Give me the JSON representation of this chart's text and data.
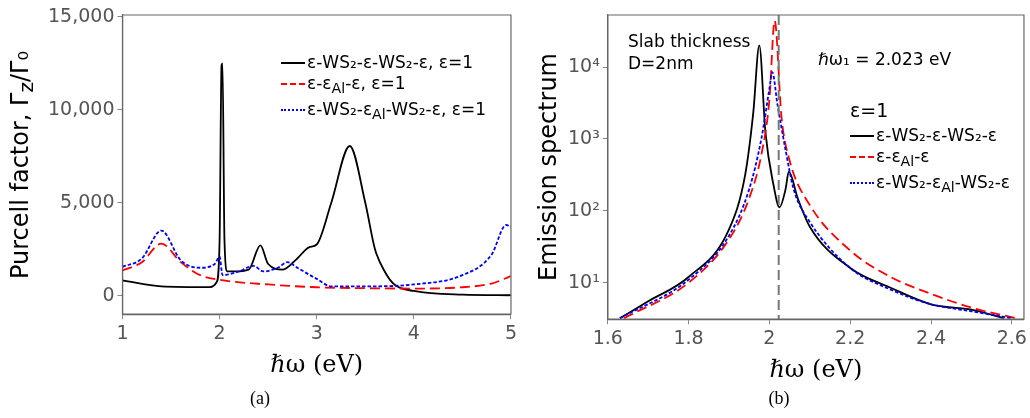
{
  "chart_data": [
    {
      "type": "line",
      "xlabel": "ℏω (eV)",
      "ylabel": "Purcell factor, Γ$_{z}$/Γ₀",
      "xlim": [
        1,
        5
      ],
      "xticks": [
        1,
        2,
        3,
        4,
        5
      ],
      "ylim": [
        -1000,
        15100
      ],
      "yticks": [
        {
          "value": 0,
          "label": "0"
        },
        {
          "value": 5000,
          "label": "5,000"
        },
        {
          "value": 10000,
          "label": "10,000"
        },
        {
          "value": 15000,
          "label": "15,000"
        }
      ],
      "grid": false,
      "legend": "top right",
      "marker": "none",
      "annotations": [
        "(a)"
      ],
      "series": [
        {
          "name": "ε-WS₂-ε-WS₂-ε, ε=1",
          "color": "#000000",
          "line_style": "solid",
          "x": [
            1,
            1.4,
            1.9,
            1.97,
            2.0,
            2.02,
            2.03,
            2.05,
            2.08,
            2.15,
            2.3,
            2.42,
            2.5,
            2.65,
            2.8,
            2.92,
            3.0,
            3.15,
            3.34,
            3.5,
            3.6,
            3.7,
            3.8,
            4,
            4.5,
            5
          ],
          "values": [
            820,
            500,
            460,
            730,
            3000,
            12400,
            12500,
            3000,
            1300,
            1300,
            1400,
            2700,
            1700,
            1400,
            2000,
            2600,
            2750,
            5000,
            8050,
            5000,
            2500,
            1300,
            600,
            250,
            50,
            20
          ]
        },
        {
          "name": "ε-ε$_{Al}$-ε, ε=1",
          "color": "#ff0000",
          "line_style": "dashed",
          "x": [
            1,
            1.2,
            1.4,
            1.6,
            1.8,
            2.0,
            2.5,
            3,
            3.5,
            4,
            4.5,
            4.8,
            5
          ],
          "values": [
            1350,
            1800,
            2800,
            1800,
            1100,
            850,
            600,
            450,
            400,
            380,
            450,
            650,
            1050
          ]
        },
        {
          "name": "ε-WS₂-ε$_{Al}$-WS₂-ε, ε=1",
          "color": "#0000ff",
          "line_style": "dotted",
          "x": [
            1,
            1.2,
            1.4,
            1.6,
            1.8,
            1.95,
            2.0,
            2.03,
            2.2,
            2.35,
            2.45,
            2.6,
            2.7,
            2.8,
            3.0,
            3.15,
            3.5,
            4,
            4.5,
            4.8,
            4.95,
            5
          ],
          "values": [
            1550,
            2000,
            3500,
            1900,
            1500,
            1700,
            2100,
            1100,
            1300,
            1600,
            1300,
            1500,
            1800,
            1500,
            900,
            500,
            500,
            600,
            1100,
            2200,
            3800,
            3700
          ]
        }
      ]
    },
    {
      "type": "line",
      "xlabel": "ℏω (eV)",
      "ylabel": "Emission spectrum",
      "log": true,
      "xlim": [
        1.6,
        2.63
      ],
      "xticks": [
        1.6,
        1.8,
        2,
        2.2,
        2.4,
        2.6
      ],
      "ylim": [
        3.1,
        53000
      ],
      "yticks": [
        {
          "value": 10,
          "label": "10¹"
        },
        {
          "value": 100,
          "label": "10²"
        },
        {
          "value": 1000,
          "label": "10³"
        },
        {
          "value": 10000,
          "label": "10⁴"
        }
      ],
      "grid": false,
      "legend": "top right",
      "legend_title": "ε=1",
      "marker": "none",
      "annotations": [
        "Slab thickness D=2nm",
        "ℏω₁ = 2.023 eV",
        "(b)"
      ],
      "ref_lines": [
        {
          "axis": "x",
          "value": 2.023,
          "color": "#777777",
          "line_style": "dashed"
        }
      ],
      "series": [
        {
          "name": "ε-WS₂-ε-WS₂-ε",
          "color": "#000000",
          "line_style": "solid",
          "x": [
            1.63,
            1.7,
            1.8,
            1.9,
            1.94,
            1.96,
            1.975,
            1.99,
            2.01,
            2.025,
            2.04,
            2.048,
            2.07,
            2.1,
            2.2,
            2.3,
            2.4,
            2.5,
            2.58
          ],
          "values": [
            3.2,
            5.5,
            12,
            55,
            316,
            2300,
            20000,
            1260,
            230,
            112,
            200,
            350,
            150,
            60,
            16,
            8.5,
            5,
            4.2,
            3.2
          ]
        },
        {
          "name": "ε-ε$_{Al}$-ε",
          "color": "#ff0000",
          "line_style": "dashed",
          "x": [
            1.64,
            1.8,
            1.9,
            1.95,
            1.98,
            2.0,
            2.013,
            2.03,
            2.05,
            2.1,
            2.2,
            2.3,
            2.4,
            2.5,
            2.61
          ],
          "values": [
            3.2,
            10,
            40,
            150,
            600,
            3500,
            44000,
            2000,
            500,
            120,
            28,
            12,
            7,
            4.5,
            3.2
          ]
        },
        {
          "name": "ε-WS₂-ε$_{Al}$-WS₂-ε",
          "color": "#0000ff",
          "line_style": "dotted",
          "x": [
            1.63,
            1.8,
            1.9,
            1.95,
            1.98,
            2.0,
            2.007,
            2.02,
            2.04,
            2.06,
            2.1,
            2.2,
            2.3,
            2.4,
            2.5,
            2.6
          ],
          "values": [
            3.2,
            11,
            45,
            200,
            1000,
            5000,
            8500,
            3000,
            700,
            200,
            70,
            16,
            8,
            5,
            4,
            3.2
          ]
        }
      ]
    }
  ]
}
